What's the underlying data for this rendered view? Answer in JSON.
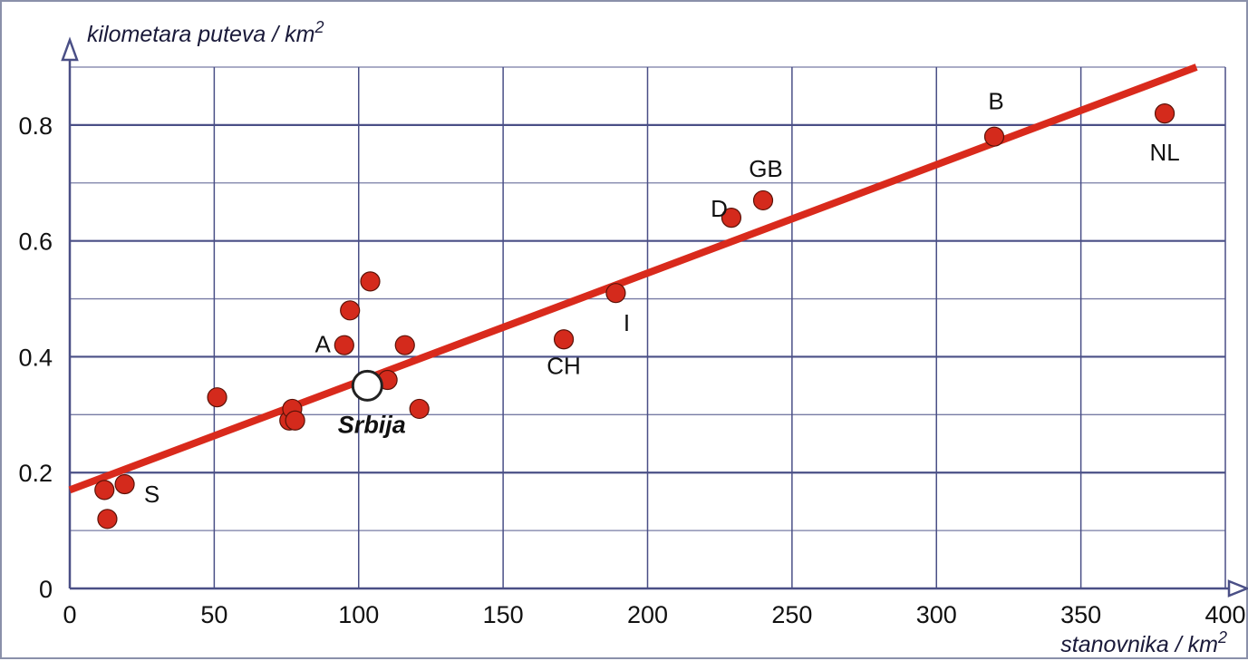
{
  "chart_data": {
    "type": "scatter",
    "xlabel": "stanovnika / km",
    "xlabel_sup": "2",
    "ylabel": "kilometara puteva / km",
    "ylabel_sup": "2",
    "xlim": [
      0,
      400
    ],
    "ylim": [
      0,
      0.9
    ],
    "x_ticks": [
      0,
      50,
      100,
      150,
      200,
      250,
      300,
      350,
      400
    ],
    "x_tick_labels": [
      "0",
      "50",
      "100",
      "150",
      "200",
      "250",
      "300",
      "350",
      "400"
    ],
    "y_ticks": [
      0,
      0.2,
      0.4,
      0.6,
      0.8
    ],
    "y_tick_labels": [
      "0",
      "0.2",
      "0.4",
      "0.6",
      "0.8"
    ],
    "grid": true,
    "colors": {
      "points": "#d42a1c",
      "trend": "#d92a1c",
      "grid": "#4a4f86",
      "highlight_fill": "#ffffff"
    },
    "trendline": {
      "x": [
        0,
        390
      ],
      "y": [
        0.17,
        0.9
      ]
    },
    "points": [
      {
        "x": 12,
        "y": 0.17,
        "label": ""
      },
      {
        "x": 13,
        "y": 0.12,
        "label": ""
      },
      {
        "x": 19,
        "y": 0.18,
        "label": "S"
      },
      {
        "x": 51,
        "y": 0.33,
        "label": ""
      },
      {
        "x": 76,
        "y": 0.29,
        "label": ""
      },
      {
        "x": 77,
        "y": 0.31,
        "label": ""
      },
      {
        "x": 78,
        "y": 0.29,
        "label": ""
      },
      {
        "x": 95,
        "y": 0.42,
        "label": "A"
      },
      {
        "x": 97,
        "y": 0.48,
        "label": ""
      },
      {
        "x": 104,
        "y": 0.53,
        "label": ""
      },
      {
        "x": 110,
        "y": 0.36,
        "label": ""
      },
      {
        "x": 116,
        "y": 0.42,
        "label": ""
      },
      {
        "x": 121,
        "y": 0.31,
        "label": ""
      },
      {
        "x": 171,
        "y": 0.43,
        "label": "CH"
      },
      {
        "x": 189,
        "y": 0.51,
        "label": "I"
      },
      {
        "x": 229,
        "y": 0.64,
        "label": "D"
      },
      {
        "x": 240,
        "y": 0.67,
        "label": "GB"
      },
      {
        "x": 320,
        "y": 0.78,
        "label": "B"
      },
      {
        "x": 379,
        "y": 0.82,
        "label": "NL"
      }
    ],
    "highlight": {
      "x": 103,
      "y": 0.35,
      "label": "Srbija"
    }
  }
}
